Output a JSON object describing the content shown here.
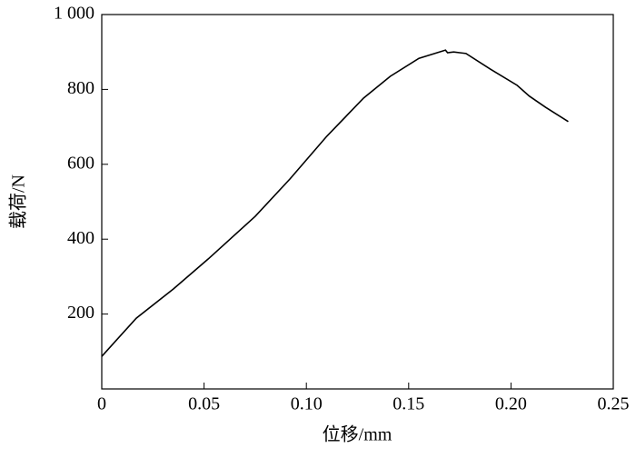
{
  "chart_data": {
    "type": "line",
    "x_label": "位移/mm",
    "y_label": "载荷/N",
    "x": [
      0,
      0.0169,
      0.035,
      0.052,
      0.075,
      0.092,
      0.11,
      0.128,
      0.141,
      0.155,
      0.168,
      0.169,
      0.172,
      0.178,
      0.19,
      0.203,
      0.209,
      0.217,
      0.228
    ],
    "values": [
      87,
      189,
      267,
      347,
      461,
      561,
      675,
      777,
      835,
      883,
      905,
      898,
      900,
      896,
      854,
      811,
      782,
      752,
      714
    ],
    "color": "#000000",
    "xlim": [
      0,
      0.25
    ],
    "xticks": [
      0,
      0.05,
      {
        "value": 0.1,
        "label": "0.10"
      },
      0.15,
      {
        "value": 0.2,
        "label": "0.20"
      },
      0.25
    ],
    "ylim": [
      0,
      1000
    ],
    "yticks": [
      200,
      400,
      600,
      800,
      {
        "value": 1000,
        "label": "1 000"
      }
    ]
  }
}
